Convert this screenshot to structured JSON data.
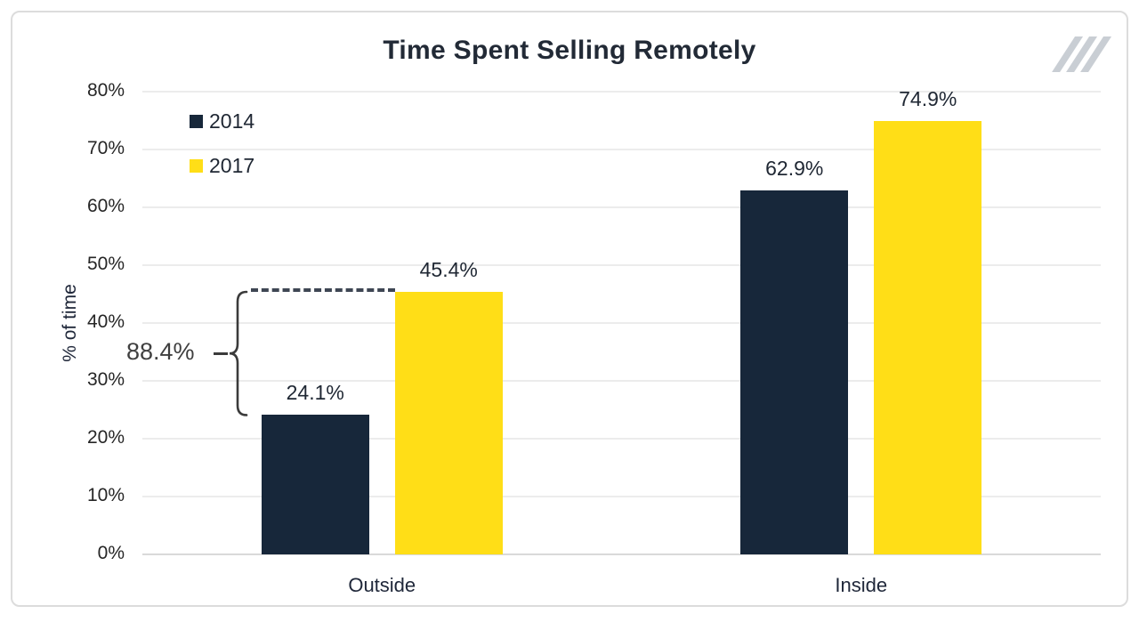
{
  "title": "Time Spent Selling Remotely",
  "logo": {
    "name": "triple-slash-logo",
    "color": "#c9ced4"
  },
  "chart_data": {
    "type": "bar",
    "title": "Time Spent Selling Remotely",
    "categories": [
      "Outside",
      "Inside"
    ],
    "series": [
      {
        "name": "2014",
        "color": "#17273A",
        "values": [
          24.1,
          62.9
        ],
        "labels": [
          "24.1%",
          "62.9%"
        ]
      },
      {
        "name": "2017",
        "color": "#FFDE17",
        "values": [
          45.4,
          74.9
        ],
        "labels": [
          "45.4%",
          "74.9%"
        ]
      }
    ],
    "ylabel": "% of time",
    "ylim": [
      0,
      80
    ],
    "ytick_step": 10,
    "ytick_labels": [
      "0%",
      "10%",
      "20%",
      "30%",
      "40%",
      "50%",
      "60%",
      "70%",
      "80%"
    ],
    "grid": true,
    "legend_position": "top-left",
    "annotation": {
      "label": "88.4%",
      "category": "Outside",
      "from_series": "2014",
      "from_value": 24.1,
      "to_series": "2017",
      "to_value": 45.4
    }
  }
}
